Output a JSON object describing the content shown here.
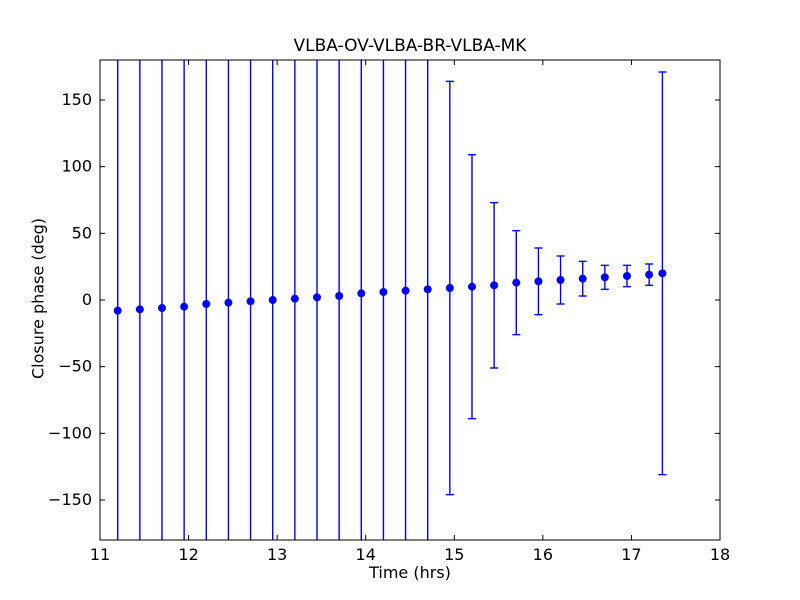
{
  "chart_data": {
    "type": "scatter",
    "title": "VLBA-OV-VLBA-BR-VLBA-MK",
    "xlabel": "Time (hrs)",
    "ylabel": "Closure phase (deg)",
    "xlim": [
      11,
      18
    ],
    "ylim": [
      -180,
      180
    ],
    "xticks": [
      11,
      12,
      13,
      14,
      15,
      16,
      17,
      18
    ],
    "yticks": [
      -150,
      -100,
      -50,
      0,
      50,
      100,
      150
    ],
    "grid": false,
    "legend": "none",
    "background": "#ffffff",
    "axes_color": "#000000",
    "series": [
      {
        "name": "closure-phase-errorbar",
        "color": "#0000ff",
        "marker": "circle",
        "x": [
          11.2,
          11.45,
          11.7,
          11.95,
          12.2,
          12.45,
          12.7,
          12.95,
          13.2,
          13.45,
          13.7,
          13.95,
          14.2,
          14.45,
          14.7,
          14.95,
          15.2,
          15.45,
          15.7,
          15.95,
          16.2,
          16.45,
          16.7,
          16.95,
          17.2,
          17.35
        ],
        "y": [
          -8,
          -7,
          -6,
          -5,
          -3,
          -2,
          -1,
          0,
          1,
          2,
          3,
          5,
          6,
          7,
          8,
          9,
          10,
          11,
          13,
          14,
          15,
          16,
          17,
          18,
          19,
          20
        ],
        "yerr": [
          400,
          400,
          400,
          400,
          400,
          400,
          400,
          400,
          400,
          400,
          400,
          400,
          400,
          400,
          400,
          155,
          99,
          62,
          39,
          25,
          18,
          13,
          9,
          8,
          8,
          151
        ]
      }
    ]
  }
}
